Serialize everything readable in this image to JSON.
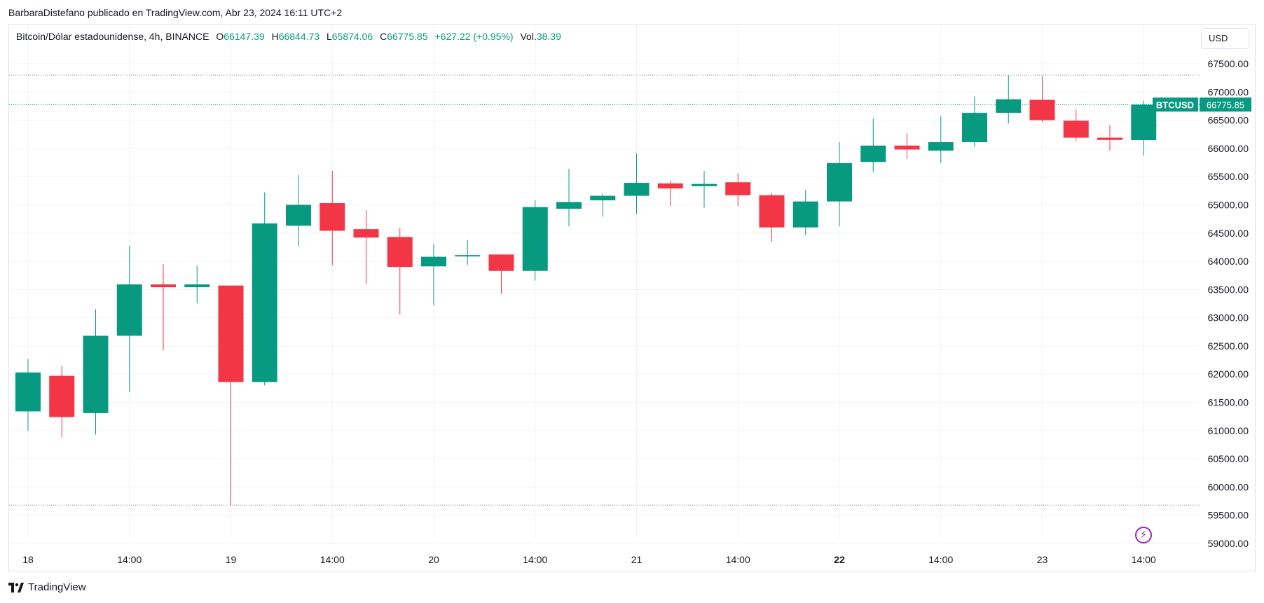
{
  "header": {
    "publisher_line": "BarbaraDistefano publicado en TradingView.com, Abr 23, 2024 16:11 UTC+2"
  },
  "legend": {
    "symbol_desc": "Bitcoin/Dólar estadounidense, 4h, BINANCE",
    "o_label": "O",
    "o_value": "66147.39",
    "h_label": "H",
    "h_value": "66844.73",
    "l_label": "L",
    "l_value": "65874.06",
    "c_label": "C",
    "c_value": "66775.85",
    "change": "+627.22 (+0.95%)",
    "vol_label": "Vol.",
    "vol_value": "38.39"
  },
  "toolbar": {
    "currency": "USD"
  },
  "price_tag": {
    "symbol": "BTCUSD",
    "price": "66775.85"
  },
  "brand": {
    "name": "TradingView"
  },
  "colors": {
    "up": "#089981",
    "down": "#f23645",
    "grid": "#f0f3fa",
    "axis_text": "#131722",
    "bolt": "#9c27b0"
  },
  "chart_data": {
    "type": "candlestick",
    "title": "Bitcoin/Dólar estadounidense, 4h, BINANCE",
    "ylim": [
      58900,
      67900
    ],
    "y_ticks": [
      "67500.00",
      "67000.00",
      "66500.00",
      "66000.00",
      "65500.00",
      "65000.00",
      "64500.00",
      "64000.00",
      "63500.00",
      "63000.00",
      "62500.00",
      "62000.00",
      "61500.00",
      "61000.00",
      "60500.00",
      "60000.00",
      "59500.00",
      "59000.00"
    ],
    "x_ticks": [
      {
        "index": 0,
        "label": "18",
        "bold": false
      },
      {
        "index": 3,
        "label": "14:00",
        "bold": false
      },
      {
        "index": 6,
        "label": "19",
        "bold": false
      },
      {
        "index": 9,
        "label": "14:00",
        "bold": false
      },
      {
        "index": 12,
        "label": "20",
        "bold": false
      },
      {
        "index": 15,
        "label": "14:00",
        "bold": false
      },
      {
        "index": 18,
        "label": "21",
        "bold": false
      },
      {
        "index": 21,
        "label": "14:00",
        "bold": false
      },
      {
        "index": 24,
        "label": "22",
        "bold": true
      },
      {
        "index": 27,
        "label": "14:00",
        "bold": false
      },
      {
        "index": 30,
        "label": "23",
        "bold": false
      },
      {
        "index": 33,
        "label": "14:00",
        "bold": false
      }
    ],
    "candles": [
      {
        "o": 61340,
        "h": 62270,
        "l": 61000,
        "c": 62030
      },
      {
        "o": 61970,
        "h": 62150,
        "l": 60880,
        "c": 61240
      },
      {
        "o": 61310,
        "h": 63150,
        "l": 60930,
        "c": 62680
      },
      {
        "o": 62680,
        "h": 64270,
        "l": 61680,
        "c": 63590
      },
      {
        "o": 63590,
        "h": 63950,
        "l": 62420,
        "c": 63540
      },
      {
        "o": 63540,
        "h": 63920,
        "l": 63260,
        "c": 63590
      },
      {
        "o": 63570,
        "h": 63570,
        "l": 59680,
        "c": 61860
      },
      {
        "o": 61860,
        "h": 65220,
        "l": 61800,
        "c": 64670
      },
      {
        "o": 64630,
        "h": 65530,
        "l": 64270,
        "c": 65000
      },
      {
        "o": 65030,
        "h": 65600,
        "l": 63930,
        "c": 64540
      },
      {
        "o": 64570,
        "h": 64910,
        "l": 63590,
        "c": 64420
      },
      {
        "o": 64430,
        "h": 64590,
        "l": 63060,
        "c": 63900
      },
      {
        "o": 63910,
        "h": 64310,
        "l": 63220,
        "c": 64080
      },
      {
        "o": 64090,
        "h": 64380,
        "l": 63940,
        "c": 64110
      },
      {
        "o": 64120,
        "h": 64120,
        "l": 63420,
        "c": 63830
      },
      {
        "o": 63830,
        "h": 65080,
        "l": 63660,
        "c": 64960
      },
      {
        "o": 64930,
        "h": 65640,
        "l": 64620,
        "c": 65050
      },
      {
        "o": 65080,
        "h": 65200,
        "l": 64790,
        "c": 65160
      },
      {
        "o": 65160,
        "h": 65910,
        "l": 64840,
        "c": 65390
      },
      {
        "o": 65380,
        "h": 65420,
        "l": 64980,
        "c": 65290
      },
      {
        "o": 65330,
        "h": 65600,
        "l": 64950,
        "c": 65370
      },
      {
        "o": 65400,
        "h": 65560,
        "l": 64980,
        "c": 65170
      },
      {
        "o": 65170,
        "h": 65210,
        "l": 64350,
        "c": 64600
      },
      {
        "o": 64600,
        "h": 65260,
        "l": 64460,
        "c": 65060
      },
      {
        "o": 65060,
        "h": 66110,
        "l": 64620,
        "c": 65740
      },
      {
        "o": 65760,
        "h": 66530,
        "l": 65580,
        "c": 66050
      },
      {
        "o": 66050,
        "h": 66270,
        "l": 65810,
        "c": 65980
      },
      {
        "o": 65960,
        "h": 66570,
        "l": 65740,
        "c": 66110
      },
      {
        "o": 66110,
        "h": 66920,
        "l": 66030,
        "c": 66630
      },
      {
        "o": 66630,
        "h": 67300,
        "l": 66440,
        "c": 66870
      },
      {
        "o": 66860,
        "h": 67280,
        "l": 66470,
        "c": 66500
      },
      {
        "o": 66490,
        "h": 66690,
        "l": 66130,
        "c": 66190
      },
      {
        "o": 66190,
        "h": 66410,
        "l": 65960,
        "c": 66150
      },
      {
        "o": 66147.39,
        "h": 66844.73,
        "l": 65874.06,
        "c": 66775.85
      }
    ],
    "reference_lines": [
      67300,
      59680
    ],
    "last_price": 66775.85
  }
}
